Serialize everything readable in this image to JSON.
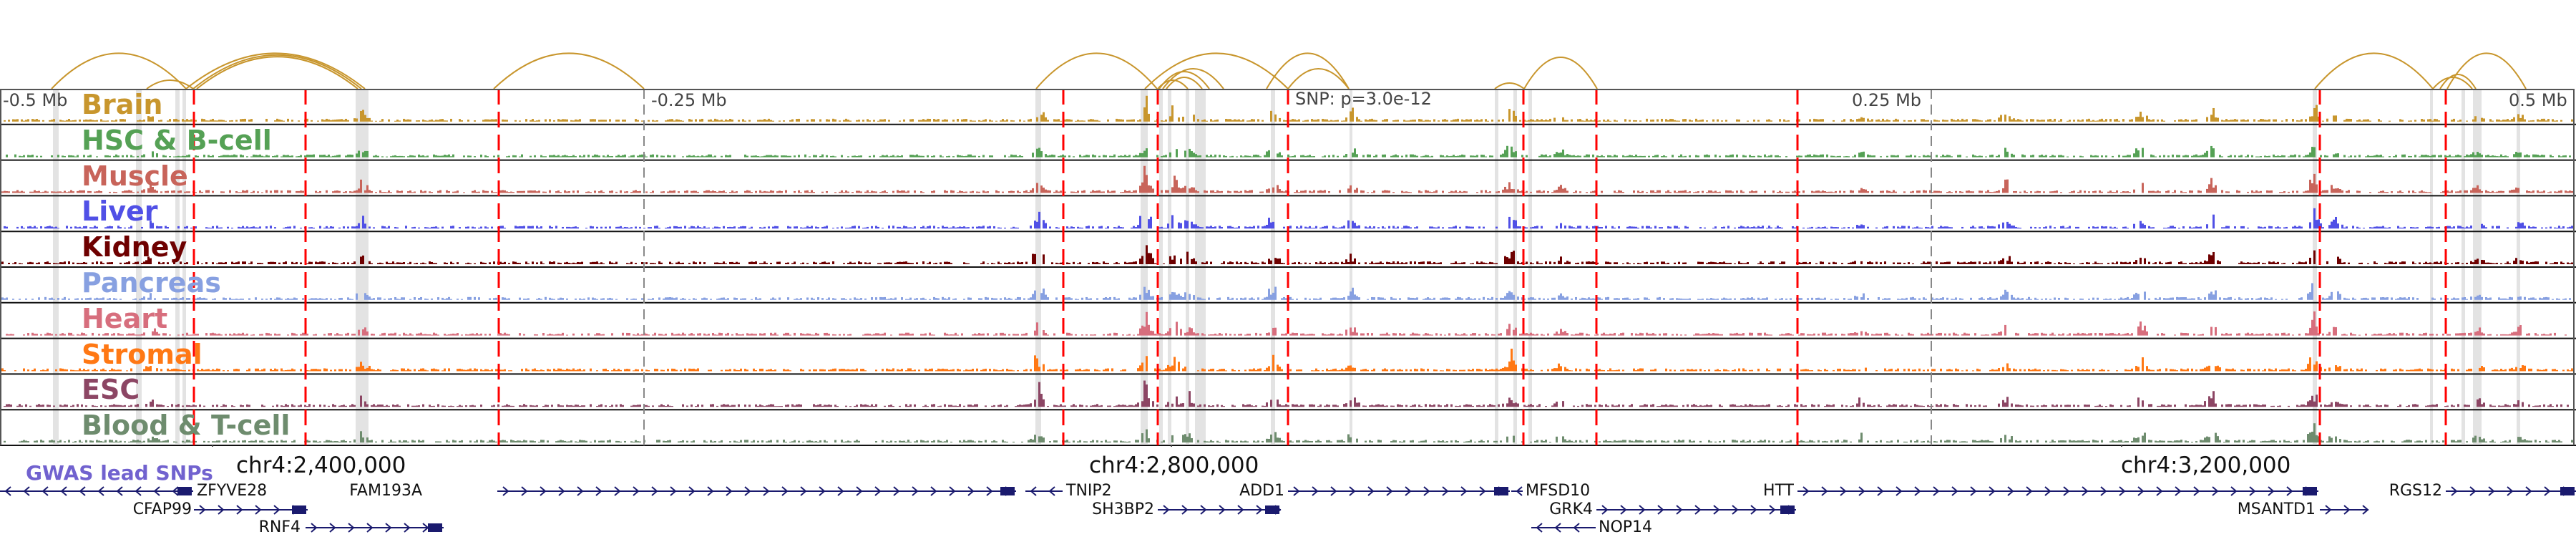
{
  "tracks": [
    {
      "name": "Brain",
      "color": "#c8962d"
    },
    {
      "name": "HSC & B-cell",
      "color": "#55a155"
    },
    {
      "name": "Muscle",
      "color": "#c8645a"
    },
    {
      "name": "Liver",
      "color": "#5050e6"
    },
    {
      "name": "Kidney",
      "color": "#6e0000"
    },
    {
      "name": "Pancreas",
      "color": "#87a0e1"
    },
    {
      "name": "Heart",
      "color": "#d76e7d"
    },
    {
      "name": "Stromal",
      "color": "#ff7814"
    },
    {
      "name": "ESC",
      "color": "#8c4664"
    },
    {
      "name": "Blood & T-cell",
      "color": "#6e8c6e"
    }
  ],
  "scale": {
    "left": "-0.5 Mb",
    "mid_left": "-0.25 Mb",
    "mid_right": "0.25 Mb",
    "right": "0.5 Mb"
  },
  "snp_label": "SNP: p=3.0e-12",
  "coordinates": [
    "chr4:2,400,000",
    "chr4:2,800,000",
    "chr4:3,200,000"
  ],
  "gwas_label": "GWAS lead SNPs",
  "genes": [
    "ZFYVE28",
    "CFAP99",
    "RNF4",
    "FAM193A",
    "TNIP2",
    "SH3BP2",
    "ADD1",
    "MFSD10",
    "GRK4",
    "NOP14",
    "HTT",
    "MSANTD1",
    "RGS12"
  ],
  "colors": {
    "arc": "#c8962d",
    "red_line": "#ff0000",
    "gene": "#1a1a6e",
    "gwas": "#6a5acd",
    "highlight": "#e3e3e3"
  }
}
